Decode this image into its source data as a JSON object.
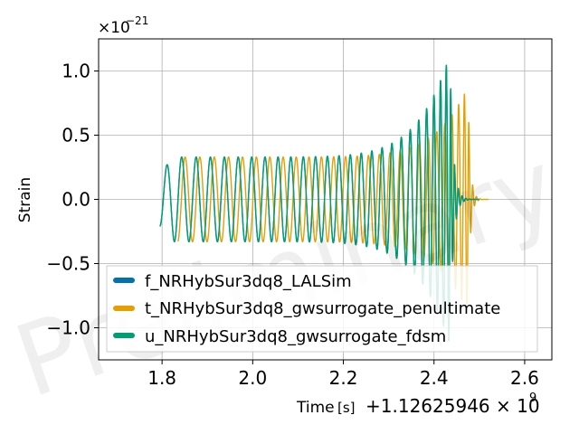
{
  "chart_data": {
    "type": "line",
    "xlabel": "Time",
    "xlabel_unit": "[s]",
    "x_offset_label": "+1.12625946 × 10",
    "x_offset_exp": "9",
    "ylabel": "Strain",
    "y_scale_label": "×10",
    "y_scale_exp": "−21",
    "watermark": "Preliminary",
    "xlim": [
      1.66,
      2.66
    ],
    "ylim": [
      -1.25,
      1.25
    ],
    "x_ticks": [
      1.8,
      2.0,
      2.2,
      2.4,
      2.6
    ],
    "x_tick_labels": [
      "1.8",
      "2.0",
      "2.2",
      "2.4",
      "2.6"
    ],
    "y_ticks": [
      -1.0,
      -0.5,
      0.0,
      0.5,
      1.0
    ],
    "y_tick_labels": [
      "−1.0",
      "−0.5",
      "0.0",
      "0.5",
      "1.0"
    ],
    "grid": true,
    "legend_position": "lower-left",
    "series": [
      {
        "name": "f_NRHybSur3dq8_LALSim",
        "color": "#0072b2",
        "t_start": 1.795,
        "t_merger": 2.435,
        "t_end": 2.5,
        "amp_start": 0.21,
        "amp_early": 0.33,
        "amp_peak": 1.13,
        "cycles": 26
      },
      {
        "name": "t_NRHybSur3dq8_gwsurrogate_penultimate",
        "color": "#e69f00",
        "t_start": 1.835,
        "t_merger": 2.475,
        "t_end": 2.52,
        "amp_start": 0.33,
        "amp_early": 0.33,
        "amp_peak": 0.88,
        "cycles": 26
      },
      {
        "name": "u_NRHybSur3dq8_gwsurrogate_fdsm",
        "color": "#009e73",
        "t_start": 1.795,
        "t_merger": 2.435,
        "t_end": 2.5,
        "amp_start": 0.21,
        "amp_early": 0.33,
        "amp_peak": 1.13,
        "cycles": 26
      }
    ]
  }
}
